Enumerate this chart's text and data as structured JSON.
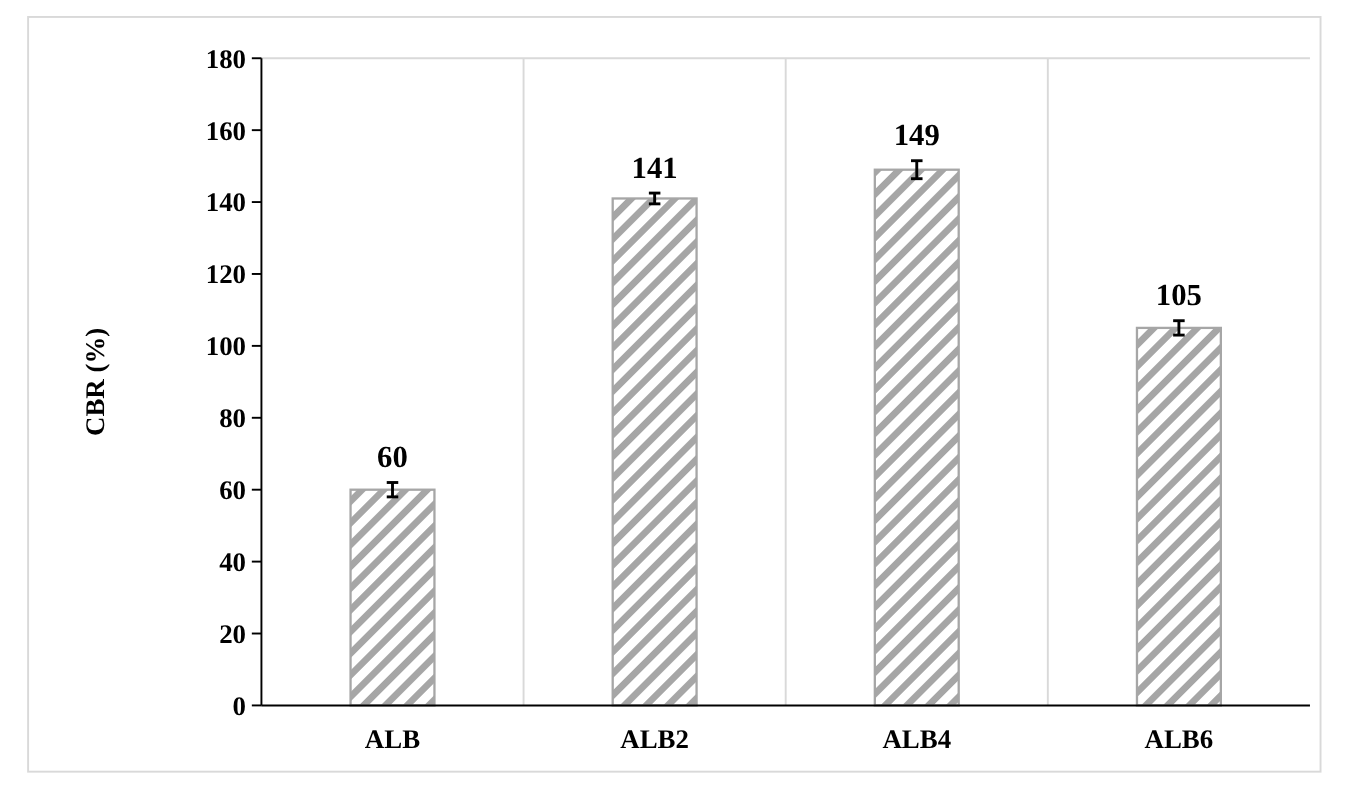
{
  "chart_data": {
    "type": "bar",
    "ylabel": "CBR (%)",
    "categories": [
      "ALB",
      "ALB2",
      "ALB4",
      "ALB6"
    ],
    "values": [
      60,
      141,
      149,
      105
    ],
    "errors": [
      2,
      1.5,
      2.5,
      2
    ],
    "color": "#a6a6a6",
    "data_labels": true,
    "ylim": [
      0,
      180
    ],
    "yticks": [
      0,
      20,
      40,
      60,
      80,
      100,
      120,
      140,
      160,
      180
    ],
    "grid": "x"
  }
}
